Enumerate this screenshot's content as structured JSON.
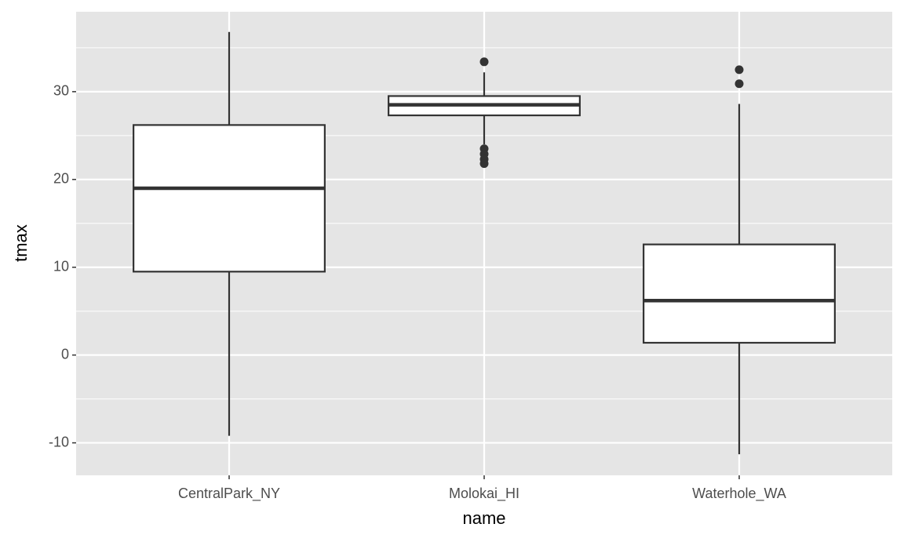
{
  "chart_data": {
    "type": "boxplot",
    "x_label": "name",
    "y_label": "tmax",
    "categories": [
      "CentralPark_NY",
      "Molokai_HI",
      "Waterhole_WA"
    ],
    "boxes": [
      {
        "whisker_low": -9.2,
        "q1": 9.5,
        "median": 19.0,
        "q3": 26.2,
        "whisker_high": 36.8,
        "outliers": []
      },
      {
        "whisker_low": 24.0,
        "q1": 27.3,
        "median": 28.5,
        "q3": 29.5,
        "whisker_high": 32.2,
        "outliers": [
          33.4,
          23.5,
          22.9,
          22.3,
          21.8
        ]
      },
      {
        "whisker_low": -11.3,
        "q1": 1.4,
        "median": 6.2,
        "q3": 12.6,
        "whisker_high": 28.6,
        "outliers": [
          32.5,
          30.9
        ]
      }
    ],
    "ylim": [
      -13.7,
      39.1
    ],
    "yticks": [
      -10,
      0,
      10,
      20,
      30
    ],
    "minor_grid": [
      -5,
      5,
      15,
      25,
      35
    ],
    "grid": true,
    "box_fill": "#ffffff",
    "line_color": "#333333",
    "panel_color": "#e5e5e5"
  }
}
